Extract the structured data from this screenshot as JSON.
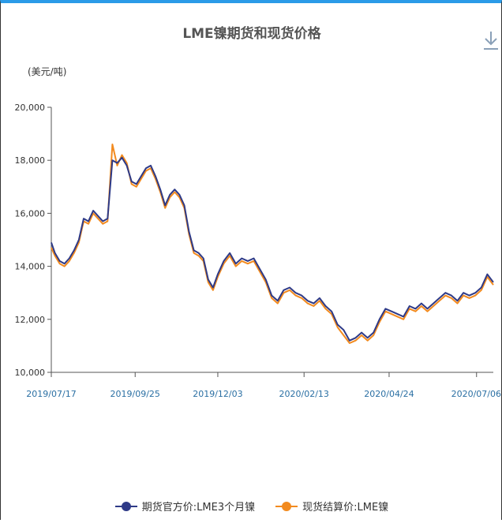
{
  "chart_data": {
    "type": "line",
    "title": "LME镍期货和现货价格",
    "ylabel": "(美元/吨)",
    "xlabel": "",
    "ylim": [
      10000,
      20000
    ],
    "y_ticks": [
      "10,000",
      "12,000",
      "14,000",
      "16,000",
      "18,000",
      "20,000"
    ],
    "x_ticks": [
      "2019/07/17",
      "2019/09/25",
      "2019/12/03",
      "2020/02/13",
      "2020/04/24",
      "2020/07/06"
    ],
    "x_tick_dates": [
      "2019-07-17",
      "2019-09-25",
      "2019-12-03",
      "2020-02-13",
      "2020-04-24",
      "2020-07-06"
    ],
    "x_range": [
      "2019-07-17",
      "2020-07-20"
    ],
    "grid": false,
    "legend_position": "bottom",
    "series": [
      {
        "name": "期货官方价:LME3个月镍",
        "color": "#2e3a87",
        "x": [
          "2019-07-17",
          "2019-07-20",
          "2019-07-24",
          "2019-07-28",
          "2019-08-01",
          "2019-08-05",
          "2019-08-09",
          "2019-08-13",
          "2019-08-17",
          "2019-08-21",
          "2019-08-25",
          "2019-08-29",
          "2019-09-02",
          "2019-09-06",
          "2019-09-10",
          "2019-09-14",
          "2019-09-18",
          "2019-09-22",
          "2019-09-26",
          "2019-09-30",
          "2019-10-04",
          "2019-10-08",
          "2019-10-12",
          "2019-10-16",
          "2019-10-20",
          "2019-10-24",
          "2019-10-28",
          "2019-11-01",
          "2019-11-05",
          "2019-11-09",
          "2019-11-13",
          "2019-11-17",
          "2019-11-21",
          "2019-11-25",
          "2019-11-29",
          "2019-12-03",
          "2019-12-08",
          "2019-12-13",
          "2019-12-18",
          "2019-12-23",
          "2019-12-28",
          "2020-01-02",
          "2020-01-07",
          "2020-01-12",
          "2020-01-17",
          "2020-01-22",
          "2020-01-27",
          "2020-02-01",
          "2020-02-06",
          "2020-02-11",
          "2020-02-16",
          "2020-02-21",
          "2020-02-26",
          "2020-03-02",
          "2020-03-07",
          "2020-03-12",
          "2020-03-17",
          "2020-03-22",
          "2020-03-27",
          "2020-04-01",
          "2020-04-06",
          "2020-04-11",
          "2020-04-16",
          "2020-04-21",
          "2020-04-26",
          "2020-05-01",
          "2020-05-06",
          "2020-05-11",
          "2020-05-16",
          "2020-05-21",
          "2020-05-26",
          "2020-05-31",
          "2020-06-05",
          "2020-06-10",
          "2020-06-15",
          "2020-06-20",
          "2020-06-25",
          "2020-06-30",
          "2020-07-05",
          "2020-07-10",
          "2020-07-15",
          "2020-07-20"
        ],
        "values": [
          14900,
          14500,
          14200,
          14100,
          14300,
          14600,
          15000,
          15800,
          15700,
          16100,
          15900,
          15700,
          15800,
          18000,
          17900,
          18100,
          17800,
          17200,
          17100,
          17400,
          17700,
          17800,
          17400,
          16900,
          16300,
          16700,
          16900,
          16700,
          16300,
          15300,
          14600,
          14500,
          14300,
          13500,
          13200,
          13700,
          14200,
          14500,
          14100,
          14300,
          14200,
          14300,
          13900,
          13500,
          12900,
          12700,
          13100,
          13200,
          13000,
          12900,
          12700,
          12600,
          12800,
          12500,
          12300,
          11800,
          11600,
          11200,
          11300,
          11500,
          11300,
          11500,
          12000,
          12400,
          12300,
          12200,
          12100,
          12500,
          12400,
          12600,
          12400,
          12600,
          12800,
          13000,
          12900,
          12700,
          13000,
          12900,
          13000,
          13200,
          13700,
          13400
        ]
      },
      {
        "name": "现货结算价:LME镍",
        "color": "#f28a1e",
        "x": [
          "2019-07-17",
          "2019-07-20",
          "2019-07-24",
          "2019-07-28",
          "2019-08-01",
          "2019-08-05",
          "2019-08-09",
          "2019-08-13",
          "2019-08-17",
          "2019-08-21",
          "2019-08-25",
          "2019-08-29",
          "2019-09-02",
          "2019-09-06",
          "2019-09-10",
          "2019-09-14",
          "2019-09-18",
          "2019-09-22",
          "2019-09-26",
          "2019-09-30",
          "2019-10-04",
          "2019-10-08",
          "2019-10-12",
          "2019-10-16",
          "2019-10-20",
          "2019-10-24",
          "2019-10-28",
          "2019-11-01",
          "2019-11-05",
          "2019-11-09",
          "2019-11-13",
          "2019-11-17",
          "2019-11-21",
          "2019-11-25",
          "2019-11-29",
          "2019-12-03",
          "2019-12-08",
          "2019-12-13",
          "2019-12-18",
          "2019-12-23",
          "2019-12-28",
          "2020-01-02",
          "2020-01-07",
          "2020-01-12",
          "2020-01-17",
          "2020-01-22",
          "2020-01-27",
          "2020-02-01",
          "2020-02-06",
          "2020-02-11",
          "2020-02-16",
          "2020-02-21",
          "2020-02-26",
          "2020-03-02",
          "2020-03-07",
          "2020-03-12",
          "2020-03-17",
          "2020-03-22",
          "2020-03-27",
          "2020-04-01",
          "2020-04-06",
          "2020-04-11",
          "2020-04-16",
          "2020-04-21",
          "2020-04-26",
          "2020-05-01",
          "2020-05-06",
          "2020-05-11",
          "2020-05-16",
          "2020-05-21",
          "2020-05-26",
          "2020-05-31",
          "2020-06-05",
          "2020-06-10",
          "2020-06-15",
          "2020-06-20",
          "2020-06-25",
          "2020-06-30",
          "2020-07-05",
          "2020-07-10",
          "2020-07-15",
          "2020-07-20"
        ],
        "values": [
          14700,
          14400,
          14100,
          14000,
          14200,
          14500,
          14900,
          15700,
          15600,
          16000,
          15800,
          15600,
          15700,
          18600,
          17800,
          18200,
          17900,
          17100,
          17000,
          17300,
          17600,
          17700,
          17300,
          16800,
          16200,
          16600,
          16800,
          16600,
          16200,
          15200,
          14500,
          14400,
          14200,
          13400,
          13100,
          13600,
          14100,
          14400,
          14000,
          14200,
          14100,
          14200,
          13800,
          13400,
          12800,
          12600,
          13000,
          13100,
          12900,
          12800,
          12600,
          12500,
          12700,
          12400,
          12200,
          11700,
          11400,
          11100,
          11200,
          11400,
          11200,
          11400,
          11900,
          12300,
          12200,
          12100,
          12000,
          12400,
          12300,
          12500,
          12300,
          12500,
          12700,
          12900,
          12800,
          12600,
          12900,
          12800,
          12900,
          13100,
          13600,
          13300
        ]
      }
    ]
  }
}
